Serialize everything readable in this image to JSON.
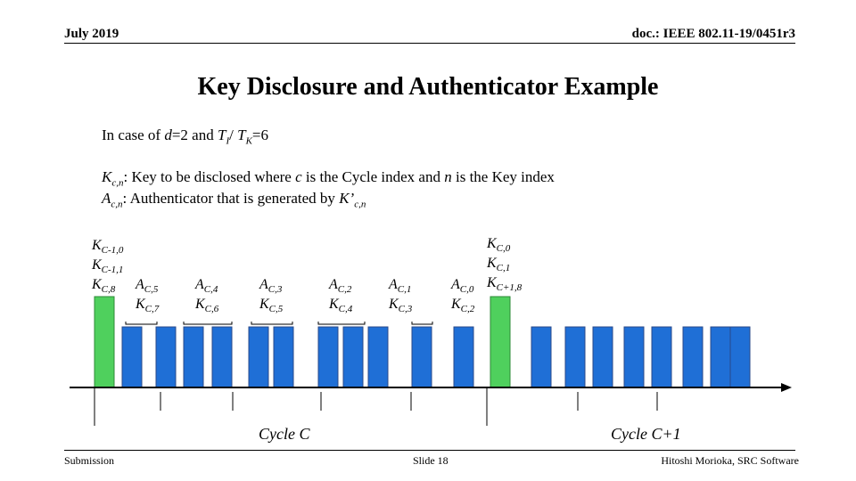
{
  "header": {
    "date": "July 2019",
    "doc": "doc.: IEEE 802.11-19/0451r3"
  },
  "title": "Key Disclosure and Authenticator Example",
  "lines": {
    "line1": {
      "p1": "In case of ",
      "d": "d",
      "p2": "=2 and ",
      "T": "T",
      "Tsub": "I",
      "p3": "/ ",
      "T2": "T",
      "T2sub": "K",
      "p4": "=6"
    },
    "line2": {
      "K": "K",
      "sub": "c,n",
      "p1": ":  Key to be disclosed where ",
      "c": "c",
      "p2": " is the Cycle index and ",
      "n": "n",
      "p3": " is the Key index"
    },
    "line3": {
      "A": "A",
      "sub": "c,n",
      "p1": ": Authenticator that is generated by ",
      "Kp": "K’",
      "Kpsub": "c,n"
    }
  },
  "labels": {
    "left_stack": [
      {
        "main": "K",
        "sub": "C-1,0"
      },
      {
        "main": "K",
        "sub": "C-1,1"
      },
      {
        "main": "K",
        "sub": "C,8"
      }
    ],
    "pairs": [
      {
        "a": "C,5",
        "k": "C,7"
      },
      {
        "a": "C,4",
        "k": "C,6"
      },
      {
        "a": "C,3",
        "k": "C,5"
      },
      {
        "a": "C,2",
        "k": "C,4"
      },
      {
        "a": "C,1",
        "k": "C,3"
      },
      {
        "a": "C,0",
        "k": "C,2"
      }
    ],
    "right_stack": [
      {
        "main": "K",
        "sub": "C,0"
      },
      {
        "main": "K",
        "sub": "C,1"
      },
      {
        "main": "K",
        "sub": "C+1,8"
      }
    ],
    "A": "A",
    "K": "K"
  },
  "cycles": {
    "c1": "Cycle  C",
    "c2": "Cycle C+1"
  },
  "colors": {
    "green": "#4fd05d",
    "blue": "#1f6fd6",
    "stroke": "#2a4a8a"
  },
  "footer": {
    "left": "Submission",
    "center": "Slide 18",
    "right": "Hitoshi Morioka, SRC Software"
  }
}
